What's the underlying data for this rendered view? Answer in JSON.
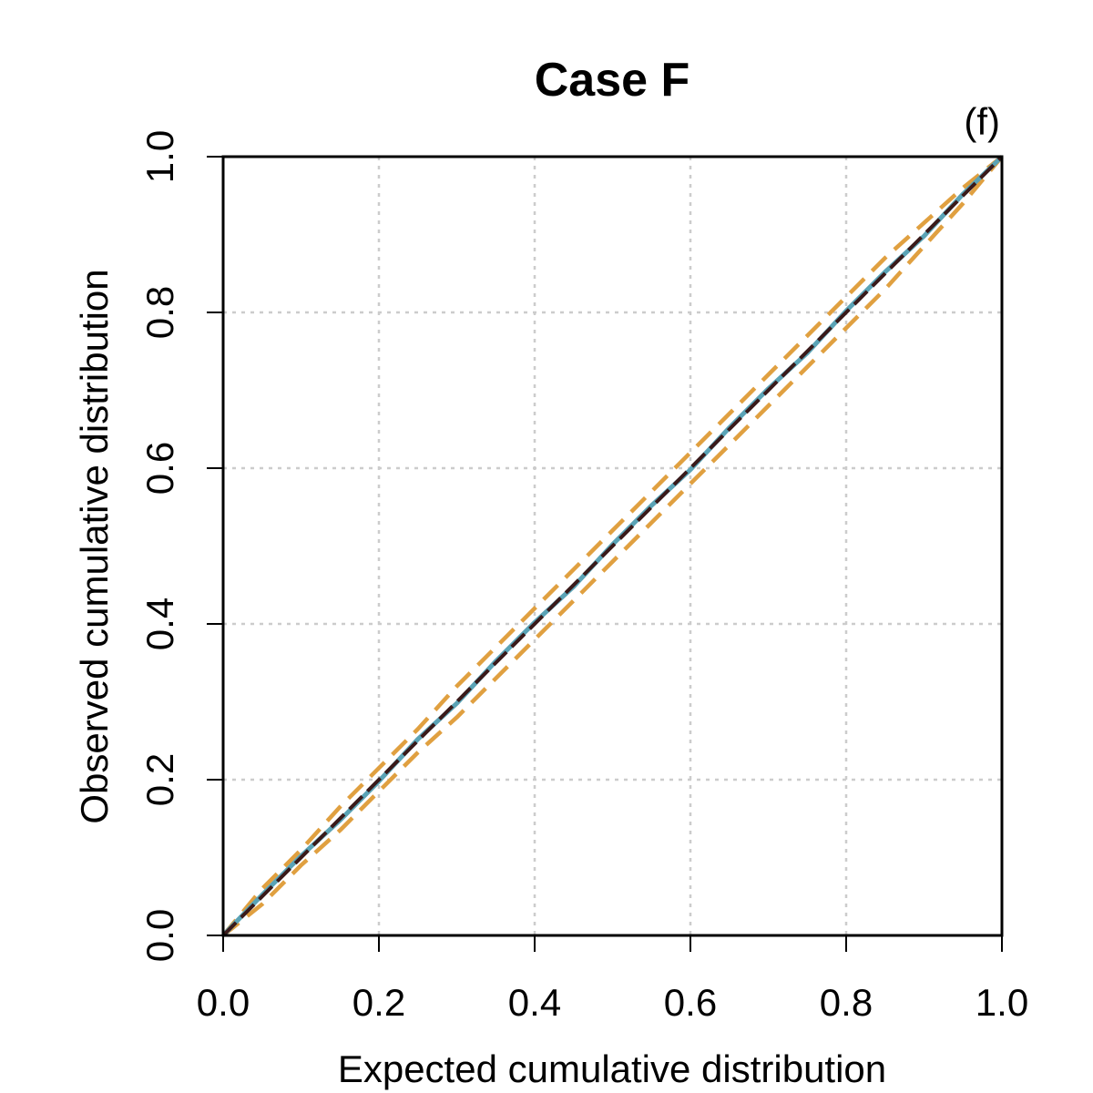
{
  "chart_data": {
    "type": "line",
    "title": "Case F",
    "panel_label": "(f)",
    "xlabel": "Expected cumulative distribution",
    "ylabel": "Observed cumulative distribution",
    "xlim": [
      0,
      1
    ],
    "ylim": [
      0,
      1
    ],
    "xticks": [
      "0.0",
      "0.2",
      "0.4",
      "0.6",
      "0.8",
      "1.0"
    ],
    "yticks": [
      "0.0",
      "0.2",
      "0.4",
      "0.6",
      "0.8",
      "1.0"
    ],
    "xtick_values": [
      0,
      0.2,
      0.4,
      0.6,
      0.8,
      1.0
    ],
    "ytick_values": [
      0,
      0.2,
      0.4,
      0.6,
      0.8,
      1.0
    ],
    "grid": true,
    "series": [
      {
        "style": "dashed-envelope-lower",
        "color": "#E0A040",
        "x": [
          0,
          0.05,
          0.1,
          0.15,
          0.2,
          0.25,
          0.3,
          0.35,
          0.4,
          0.45,
          0.5,
          0.55,
          0.6,
          0.65,
          0.7,
          0.75,
          0.8,
          0.85,
          0.9,
          0.95,
          1.0
        ],
        "values": [
          0,
          0.04,
          0.09,
          0.135,
          0.185,
          0.235,
          0.28,
          0.33,
          0.38,
          0.43,
          0.48,
          0.53,
          0.58,
          0.63,
          0.68,
          0.73,
          0.78,
          0.83,
          0.885,
          0.94,
          1.0
        ]
      },
      {
        "style": "dashed-envelope-upper",
        "color": "#E0A040",
        "x": [
          0,
          0.05,
          0.1,
          0.15,
          0.2,
          0.25,
          0.3,
          0.35,
          0.4,
          0.45,
          0.5,
          0.55,
          0.6,
          0.65,
          0.7,
          0.75,
          0.8,
          0.85,
          0.9,
          0.95,
          1.0
        ],
        "values": [
          0,
          0.06,
          0.11,
          0.165,
          0.215,
          0.265,
          0.32,
          0.37,
          0.42,
          0.47,
          0.52,
          0.57,
          0.62,
          0.67,
          0.72,
          0.77,
          0.82,
          0.87,
          0.915,
          0.96,
          1.0
        ]
      },
      {
        "style": "observed",
        "color": "#5AA3B6",
        "x": [
          0,
          0.05,
          0.1,
          0.15,
          0.2,
          0.25,
          0.3,
          0.35,
          0.4,
          0.45,
          0.5,
          0.55,
          0.6,
          0.65,
          0.7,
          0.75,
          0.8,
          0.85,
          0.9,
          0.95,
          1.0
        ],
        "values": [
          0,
          0.052,
          0.102,
          0.148,
          0.198,
          0.252,
          0.298,
          0.352,
          0.402,
          0.448,
          0.502,
          0.552,
          0.598,
          0.652,
          0.702,
          0.748,
          0.802,
          0.852,
          0.898,
          0.952,
          1.0
        ]
      },
      {
        "style": "reference-dashed",
        "color": "#3A1A1A",
        "x": [
          0,
          1
        ],
        "values": [
          0,
          1
        ]
      }
    ]
  }
}
